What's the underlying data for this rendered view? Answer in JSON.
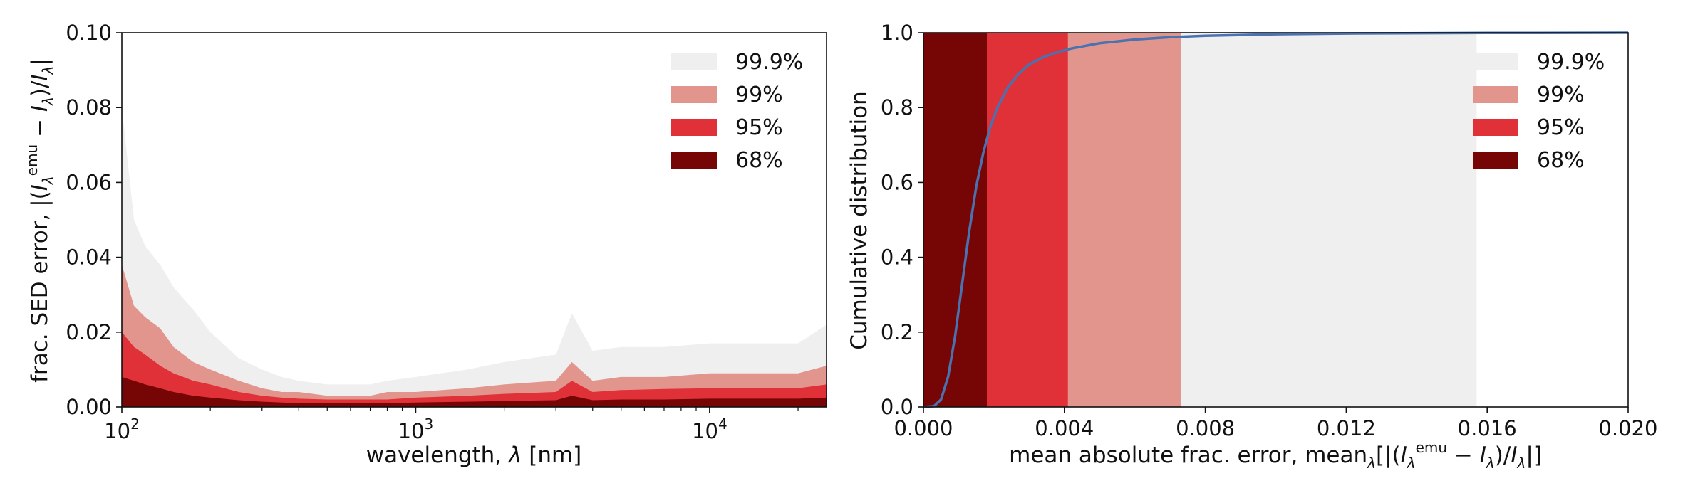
{
  "colors": {
    "band_999": "#efefef",
    "band_99": "#e2958c",
    "band_95": "#df3137",
    "band_68": "#760505",
    "cdf_line": "#4a72b0",
    "axis": "#111111"
  },
  "chart_data": [
    {
      "type": "area",
      "xscale": "log",
      "xlabel": "wavelength, λ [nm]",
      "ylabel": "frac. SED error, |(I_λ^emu − I_λ)/I_λ|",
      "xlim": [
        100,
        25000
      ],
      "ylim": [
        0,
        0.1
      ],
      "xticks": [
        {
          "value": 100,
          "label": "10",
          "exp": "2"
        },
        {
          "value": 1000,
          "label": "10",
          "exp": "3"
        },
        {
          "value": 10000,
          "label": "10",
          "exp": "4"
        }
      ],
      "yticks": [
        "0.00",
        "0.02",
        "0.04",
        "0.06",
        "0.08",
        "0.10"
      ],
      "legend": {
        "position": "upper right",
        "entries": [
          "99.9%",
          "99%",
          "95%",
          "68%"
        ]
      },
      "series": [
        {
          "name": "99.9%",
          "x": [
            100,
            110,
            120,
            135,
            150,
            175,
            200,
            250,
            300,
            350,
            400,
            500,
            600,
            700,
            800,
            1000,
            1500,
            2000,
            3000,
            3400,
            4000,
            5000,
            7000,
            10000,
            15000,
            20000,
            25000
          ],
          "y": [
            0.08,
            0.05,
            0.043,
            0.038,
            0.032,
            0.026,
            0.02,
            0.013,
            0.01,
            0.008,
            0.007,
            0.006,
            0.006,
            0.006,
            0.007,
            0.008,
            0.01,
            0.012,
            0.014,
            0.025,
            0.015,
            0.016,
            0.016,
            0.017,
            0.017,
            0.017,
            0.022
          ]
        },
        {
          "name": "99%",
          "x": [
            100,
            110,
            120,
            135,
            150,
            175,
            200,
            250,
            300,
            350,
            400,
            500,
            600,
            700,
            800,
            1000,
            1500,
            2000,
            3000,
            3400,
            4000,
            5000,
            7000,
            10000,
            15000,
            20000,
            25000
          ],
          "y": [
            0.038,
            0.027,
            0.024,
            0.021,
            0.016,
            0.012,
            0.01,
            0.007,
            0.005,
            0.004,
            0.004,
            0.003,
            0.003,
            0.003,
            0.004,
            0.004,
            0.005,
            0.006,
            0.007,
            0.012,
            0.007,
            0.008,
            0.008,
            0.009,
            0.009,
            0.009,
            0.011
          ]
        },
        {
          "name": "95%",
          "x": [
            100,
            110,
            120,
            135,
            150,
            175,
            200,
            250,
            300,
            350,
            400,
            500,
            600,
            700,
            800,
            1000,
            1500,
            2000,
            3000,
            3400,
            4000,
            5000,
            7000,
            10000,
            15000,
            20000,
            25000
          ],
          "y": [
            0.02,
            0.016,
            0.014,
            0.011,
            0.009,
            0.007,
            0.006,
            0.004,
            0.003,
            0.0025,
            0.0022,
            0.002,
            0.002,
            0.002,
            0.002,
            0.0025,
            0.003,
            0.0035,
            0.004,
            0.007,
            0.004,
            0.0045,
            0.0048,
            0.005,
            0.005,
            0.005,
            0.006
          ]
        },
        {
          "name": "68%",
          "x": [
            100,
            110,
            120,
            135,
            150,
            175,
            200,
            250,
            300,
            350,
            400,
            500,
            600,
            700,
            800,
            1000,
            1500,
            2000,
            3000,
            3400,
            4000,
            5000,
            7000,
            10000,
            15000,
            20000,
            25000
          ],
          "y": [
            0.008,
            0.007,
            0.006,
            0.005,
            0.004,
            0.003,
            0.0025,
            0.0018,
            0.0014,
            0.0012,
            0.001,
            0.001,
            0.001,
            0.001,
            0.001,
            0.0012,
            0.0014,
            0.0016,
            0.0018,
            0.003,
            0.0018,
            0.002,
            0.002,
            0.0022,
            0.0022,
            0.0022,
            0.0025
          ]
        }
      ]
    },
    {
      "type": "line",
      "xlabel": "mean absolute frac. error, mean_λ[|(I_λ^emu − I_λ)/I_λ|]",
      "ylabel": "Cumulative distribution",
      "xlim": [
        0,
        0.02
      ],
      "ylim": [
        0,
        1.0
      ],
      "xticks": [
        "0.000",
        "0.004",
        "0.008",
        "0.012",
        "0.016",
        "0.020"
      ],
      "yticks": [
        "0.0",
        "0.2",
        "0.4",
        "0.6",
        "0.8",
        "1.0"
      ],
      "legend": {
        "position": "upper right",
        "entries": [
          "99.9%",
          "99%",
          "95%",
          "68%"
        ]
      },
      "bands": [
        {
          "name": "99.9%",
          "range": [
            0,
            0.0157
          ]
        },
        {
          "name": "99%",
          "range": [
            0,
            0.0073
          ]
        },
        {
          "name": "95%",
          "range": [
            0,
            0.0041
          ]
        },
        {
          "name": "68%",
          "range": [
            0,
            0.0018
          ]
        }
      ],
      "series": [
        {
          "x": [
            0.0,
            0.0003,
            0.0005,
            0.0007,
            0.0009,
            0.0011,
            0.0013,
            0.0015,
            0.0017,
            0.0019,
            0.0021,
            0.0024,
            0.0027,
            0.003,
            0.0034,
            0.0038,
            0.0042,
            0.005,
            0.006,
            0.007,
            0.008,
            0.01,
            0.012,
            0.016,
            0.02
          ],
          "y": [
            0.0,
            0.002,
            0.02,
            0.08,
            0.19,
            0.33,
            0.47,
            0.59,
            0.68,
            0.75,
            0.8,
            0.855,
            0.89,
            0.915,
            0.935,
            0.948,
            0.958,
            0.972,
            0.982,
            0.988,
            0.992,
            0.996,
            0.998,
            0.9995,
            1.0
          ]
        }
      ]
    }
  ]
}
